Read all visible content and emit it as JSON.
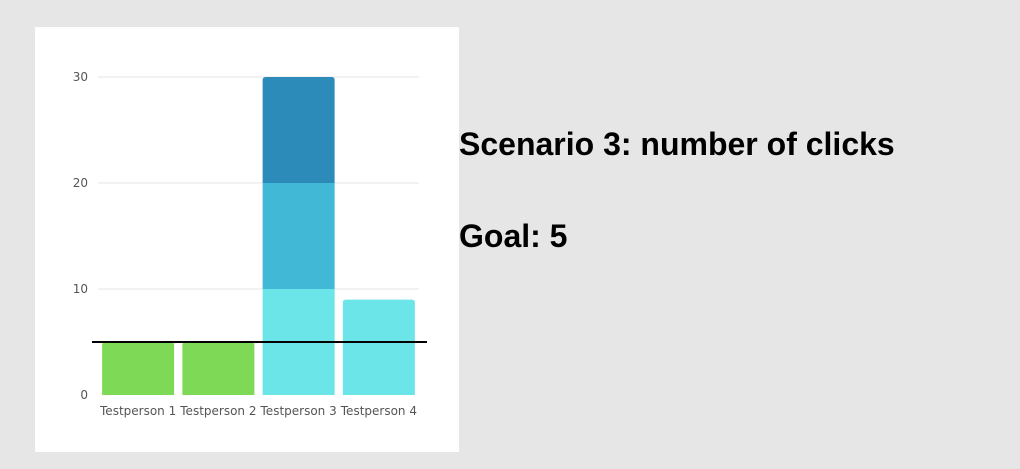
{
  "title": "Scenario 3: number of clicks",
  "goal_text": "Goal: 5",
  "chart_data": {
    "type": "bar",
    "stacked": true,
    "categories": [
      "Testperson 1",
      "Testperson 2",
      "Testperson 3",
      "Testperson 4"
    ],
    "series": [
      {
        "values": [
          5,
          5,
          10,
          9
        ],
        "colors": [
          "#7ed957",
          "#7ed957",
          "#6ce5e8",
          "#6ce5e8"
        ]
      },
      {
        "values": [
          0,
          0,
          10,
          0
        ],
        "colors": [
          "#41b8d5",
          "#41b8d5",
          "#41b8d5",
          "#41b8d5"
        ]
      },
      {
        "values": [
          0,
          0,
          10,
          0
        ],
        "colors": [
          "#2d8bba",
          "#2d8bba",
          "#2d8bba",
          "#2d8bba"
        ]
      }
    ],
    "yticks": [
      0,
      10,
      20,
      30
    ],
    "ylim": [
      0,
      30
    ],
    "goal_line": 5,
    "grid": true,
    "xlabel": "",
    "ylabel": ""
  }
}
